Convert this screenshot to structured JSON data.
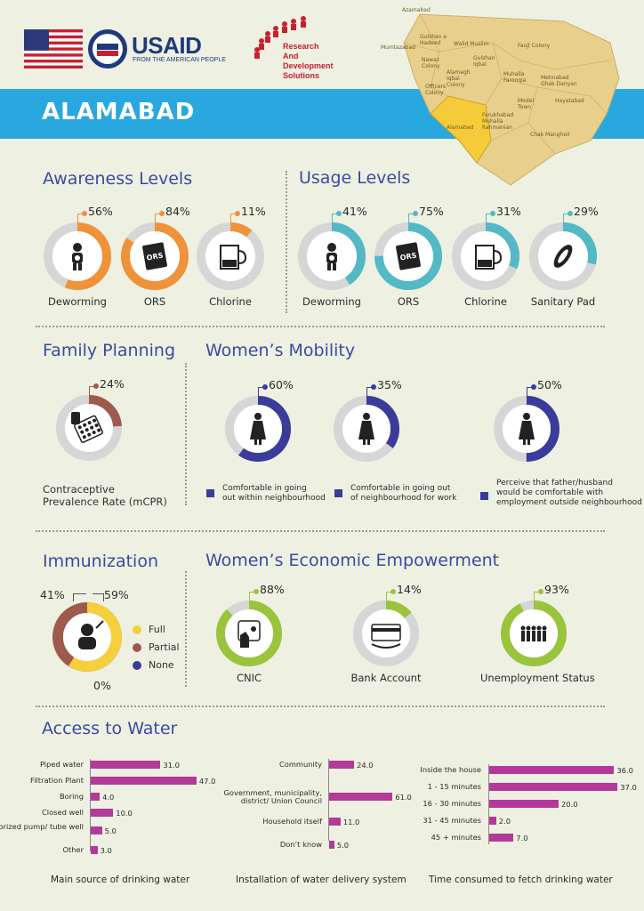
{
  "header": {
    "usaid_wordmark": "USAID",
    "usaid_tagline": "FROM THE AMERICAN PEOPLE",
    "rds_line1": "Research",
    "rds_line2": "And",
    "rds_line3": "Development",
    "rds_line4": "Solutions",
    "page_title": "ALAMABAD"
  },
  "map": {
    "labels": [
      "Azamabad",
      "Mumtazabad",
      "Gulshan e Hadeed",
      "Walid Muslim",
      "Faujl Colony",
      "Nawaz Colony",
      "Gulshan Iqbal",
      "Alamagh Iqbal Colony",
      "Muhalla Farooqia",
      "Mehnabad Ghek Danyan",
      "Officers Colony",
      "Model Town",
      "Hayatabad",
      "Farukhabad Muhalla Rahmanian",
      "Alamabad",
      "Chak Mangheil"
    ]
  },
  "awareness": {
    "title": "Awareness Levels",
    "items": [
      {
        "label": "Deworming",
        "value_text": "56%",
        "value": 56,
        "icon": "child-icon"
      },
      {
        "label": "ORS",
        "value_text": "84%",
        "value": 84,
        "icon": "ors-packet-icon"
      },
      {
        "label": "Chlorine",
        "value_text": "11%",
        "value": 11,
        "icon": "jug-icon"
      }
    ]
  },
  "usage": {
    "title": "Usage Levels",
    "items": [
      {
        "label": "Deworming",
        "value_text": "41%",
        "value": 41,
        "icon": "child-icon"
      },
      {
        "label": "ORS",
        "value_text": "75%",
        "value": 75,
        "icon": "ors-packet-icon"
      },
      {
        "label": "Chlorine",
        "value_text": "31%",
        "value": 31,
        "icon": "jug-icon"
      },
      {
        "label": "Sanitary Pad",
        "value_text": "29%",
        "value": 29,
        "icon": "sanitary-pad-icon"
      }
    ]
  },
  "family_planning": {
    "title": "Family Planning",
    "value_text": "24%",
    "value": 24,
    "caption_line1": "Contraceptive",
    "caption_line2": "Prevalence Rate (mCPR)"
  },
  "mobility": {
    "title": "Women’s Mobility",
    "items": [
      {
        "value_text": "60%",
        "value": 60,
        "line1": "Comfortable in going",
        "line2": "out within neighbourhood",
        "line3": ""
      },
      {
        "value_text": "35%",
        "value": 35,
        "line1": "Comfortable in going out",
        "line2": "of neighbourhood for work",
        "line3": ""
      },
      {
        "value_text": "50%",
        "value": 50,
        "line1": "Perceive that father/husband",
        "line2": "would be comfortable with",
        "line3": "employment outside neighbourhood"
      }
    ]
  },
  "immunization": {
    "title": "Immunization",
    "full_text": "59%",
    "partial_text": "41%",
    "none_text": "0%",
    "full": 59,
    "partial": 41,
    "none": 0,
    "legend": [
      "Full",
      "Partial",
      "None"
    ]
  },
  "economic": {
    "title": "Women’s Economic Empowerment",
    "items": [
      {
        "label": "CNIC",
        "value_text": "88%",
        "value": 88
      },
      {
        "label": "Bank Account",
        "value_text": "14%",
        "value": 14
      },
      {
        "label": "Unemployment Status",
        "value_text": "93%",
        "value": 93
      }
    ]
  },
  "water": {
    "title": "Access to Water"
  },
  "colors": {
    "orange": "#f0923a",
    "teal": "#53b9c4",
    "brown": "#9e5a4d",
    "navy": "#3b3b9a",
    "green": "#99c43c",
    "yellow": "#f6cf3e",
    "gray": "#d6d6d6",
    "magenta": "#b4399a",
    "blue": "#29a8df"
  },
  "chart_data": [
    {
      "type": "bar",
      "title": "",
      "caption": "Main source of drinking water",
      "categories": [
        "Piped water",
        "Filtration Plant",
        "Boring",
        "Closed well",
        "Motorized pump/ tube well",
        "Other"
      ],
      "values": [
        31.0,
        47.0,
        4.0,
        10.0,
        5.0,
        3.0
      ],
      "value_labels": [
        "31.0",
        "47.0",
        "4.0",
        "10.0",
        "5.0",
        "3.0"
      ]
    },
    {
      "type": "bar",
      "title": "",
      "caption": "Installation of water delivery system",
      "categories": [
        "Community",
        "Government, municipality, district/ Union Council",
        "Household itself",
        "Don’t know"
      ],
      "values": [
        24.0,
        61.0,
        11.0,
        5.0
      ],
      "value_labels": [
        "24.0",
        "61.0",
        "11.0",
        "5.0"
      ]
    },
    {
      "type": "bar",
      "title": "",
      "caption": "Time consumed to fetch drinking water",
      "categories": [
        "Inside the house",
        "1 - 15 minutes",
        "16 - 30 minutes",
        "31 - 45 minutes",
        "45 + minutes"
      ],
      "values": [
        36.0,
        37.0,
        20.0,
        2.0,
        7.0
      ],
      "value_labels": [
        "36.0",
        "37.0",
        "20.0",
        "2.0",
        "7.0"
      ]
    }
  ]
}
